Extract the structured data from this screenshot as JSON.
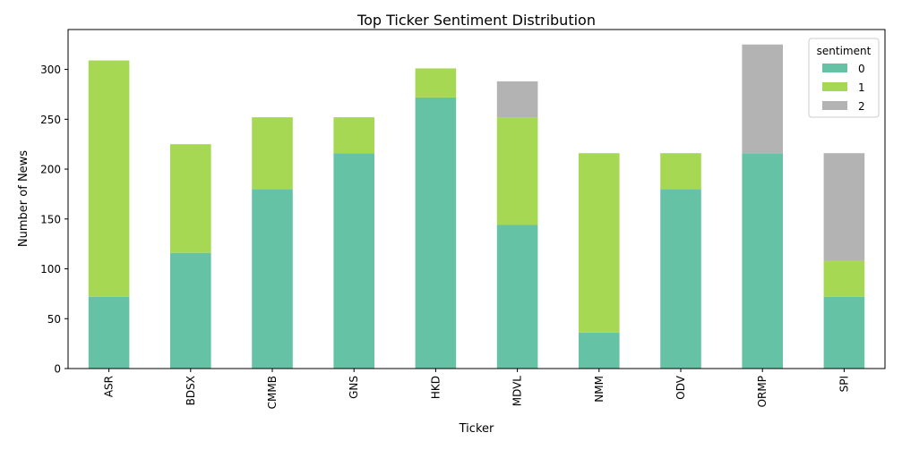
{
  "chart_data": {
    "type": "bar",
    "stacked": true,
    "title": "Top Ticker Sentiment Distribution",
    "xlabel": "Ticker",
    "ylabel": "Number of News",
    "categories": [
      "ASR",
      "BDSX",
      "CMMB",
      "GNS",
      "HKD",
      "MDVL",
      "NMM",
      "ODV",
      "ORMP",
      "SPI"
    ],
    "series": [
      {
        "name": "0",
        "color": "#66c2a5",
        "values": [
          72,
          116,
          180,
          216,
          272,
          144,
          36,
          180,
          216,
          72
        ]
      },
      {
        "name": "1",
        "color": "#a6d854",
        "values": [
          237,
          109,
          72,
          36,
          29,
          108,
          180,
          36,
          0,
          36
        ]
      },
      {
        "name": "2",
        "color": "#b3b3b3",
        "values": [
          0,
          0,
          0,
          0,
          0,
          36,
          0,
          0,
          109,
          108
        ]
      }
    ],
    "ylim": [
      0,
      340
    ],
    "yticks": [
      0,
      50,
      100,
      150,
      200,
      250,
      300
    ],
    "legend": {
      "title": "sentiment",
      "position": "top-right"
    },
    "grid": false
  }
}
